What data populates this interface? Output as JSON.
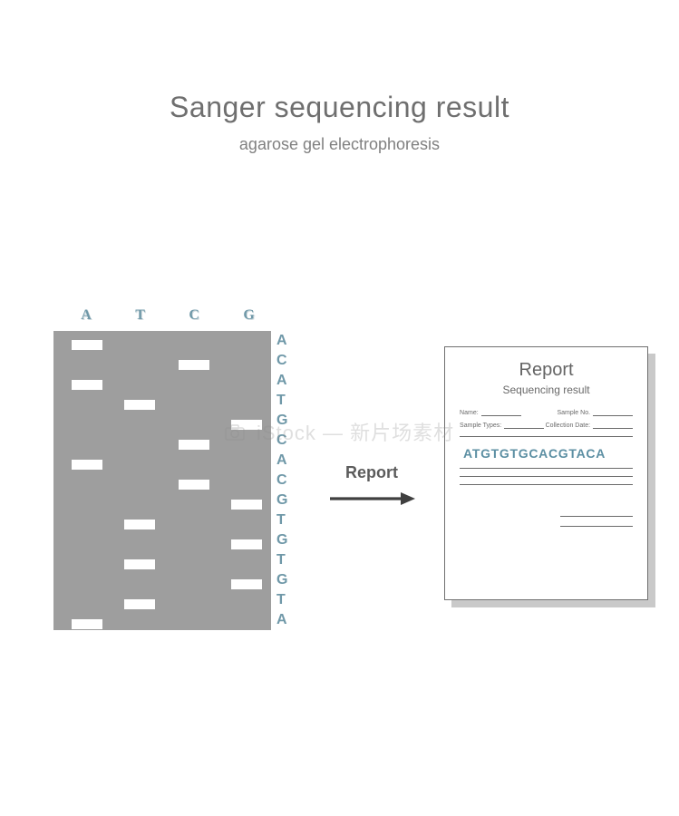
{
  "title": {
    "main": "Sanger sequencing result",
    "sub": "agarose gel electrophoresis",
    "main_color": "#6f6f6f",
    "sub_color": "#808080"
  },
  "gel": {
    "background": "#9e9e9e",
    "band_color": "#ffffff",
    "lane_headers": [
      "A",
      "T",
      "C",
      "G"
    ],
    "lane_header_color": "#6f98a8",
    "lane_header_shadow": "#cfd9dd",
    "lane_x": {
      "A": 20,
      "T": 78,
      "C": 138,
      "G": 196
    },
    "row_y_step": 22,
    "row_y_start": 10,
    "sequence_letters": [
      "A",
      "C",
      "A",
      "T",
      "G",
      "C",
      "A",
      "C",
      "G",
      "T",
      "G",
      "T",
      "G",
      "T",
      "A"
    ],
    "sequence_color": "#6f98a8",
    "bands": [
      {
        "row": 0,
        "lane": "A"
      },
      {
        "row": 1,
        "lane": "C"
      },
      {
        "row": 2,
        "lane": "A"
      },
      {
        "row": 3,
        "lane": "T"
      },
      {
        "row": 4,
        "lane": "G"
      },
      {
        "row": 5,
        "lane": "C"
      },
      {
        "row": 6,
        "lane": "A"
      },
      {
        "row": 7,
        "lane": "C"
      },
      {
        "row": 8,
        "lane": "G"
      },
      {
        "row": 9,
        "lane": "T"
      },
      {
        "row": 10,
        "lane": "G"
      },
      {
        "row": 11,
        "lane": "T"
      },
      {
        "row": 12,
        "lane": "G"
      },
      {
        "row": 13,
        "lane": "T"
      },
      {
        "row": 14,
        "lane": "A"
      }
    ]
  },
  "arrow": {
    "label": "Report",
    "label_color": "#5c5c5c",
    "stroke": "#404040",
    "width": 96,
    "height": 20
  },
  "report": {
    "title": "Report",
    "subtitle": "Sequencing result",
    "title_color": "#646464",
    "text_color": "#6a6a6a",
    "fields_row1": [
      {
        "label": "Name:"
      },
      {
        "label": "Sample No."
      }
    ],
    "fields_row2": [
      {
        "label": "Sample Types:"
      },
      {
        "label": "Collection Date:"
      }
    ],
    "sequence": "ATGTGTGCACGTACA",
    "sequence_color": "#5c8fa3",
    "border_color": "#707070",
    "back_color": "#c9c9c9",
    "front_bg": "#ffffff"
  },
  "watermark": {
    "text": "iStock — 新片场素材",
    "color": "rgba(140,140,140,0.28)"
  }
}
